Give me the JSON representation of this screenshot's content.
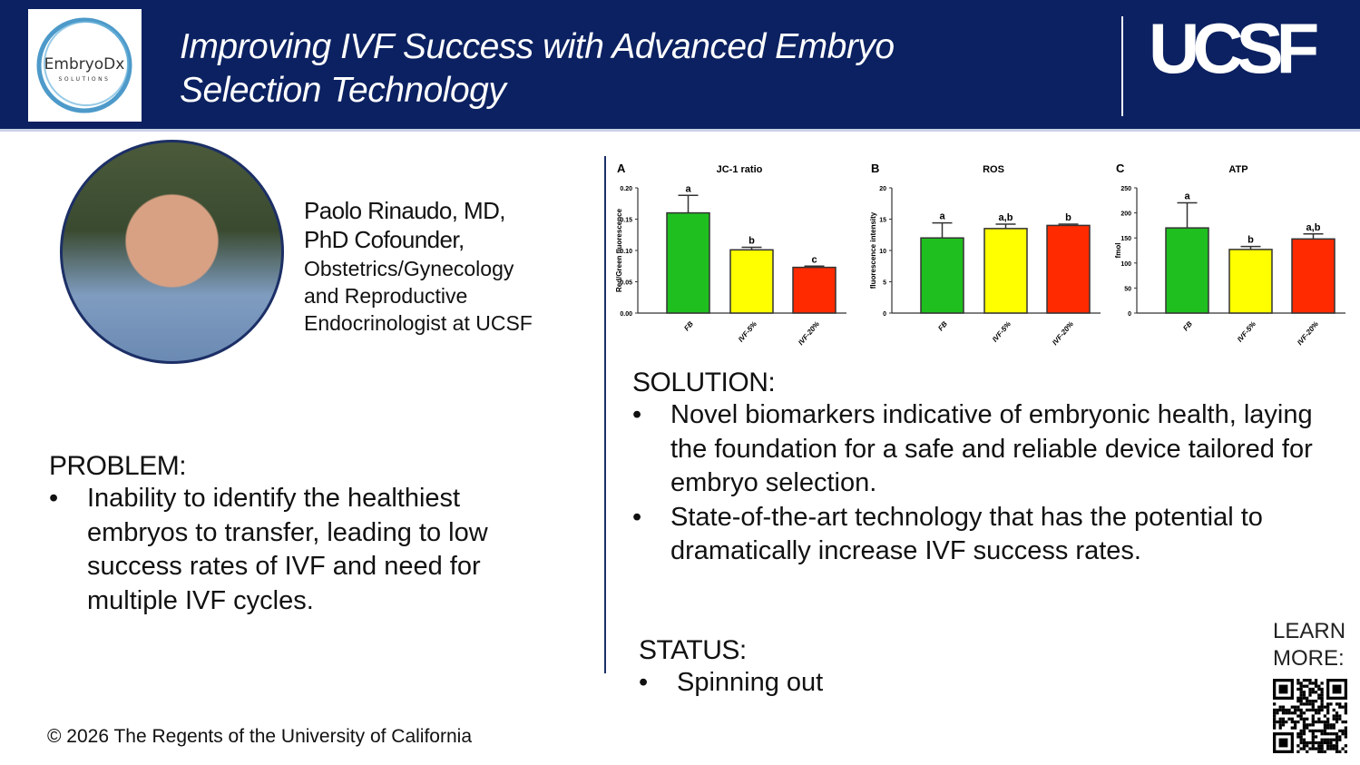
{
  "header": {
    "logo_text": "EmbryoDx",
    "logo_subtext": "SOLUTIONS",
    "title_line1": "Improving IVF Success with Advanced Embryo",
    "title_line2": "Selection Technology",
    "institution_logo": "UCSF"
  },
  "profile": {
    "name_line1": "Paolo Rinaudo, MD,",
    "name_line2": "PhD Cofounder,",
    "role_lines": [
      "Obstetrics/Gynecology",
      "and Reproductive",
      "Endocrinologist at UCSF"
    ]
  },
  "problem": {
    "heading": "PROBLEM:",
    "bullets": [
      "Inability to identify the healthiest embryos to transfer, leading to low success rates of IVF and need for multiple IVF cycles."
    ]
  },
  "solution": {
    "heading": "SOLUTION:",
    "bullets": [
      "Novel biomarkers indicative of embryonic health, laying the foundation for a safe and reliable device tailored for embryo selection.",
      "State-of-the-art technology that has the potential to dramatically increase IVF success rates."
    ]
  },
  "status": {
    "heading": "STATUS:",
    "bullets": [
      "Spinning out"
    ]
  },
  "learn_more": {
    "line1": "LEARN",
    "line2": "MORE:"
  },
  "footer": {
    "copyright": "© 2026 The Regents of the University of California"
  },
  "chart_data": [
    {
      "type": "bar",
      "panel": "A",
      "title": "JC-1 ratio",
      "ylabel": "Red/Green fluorescence",
      "categories": [
        "FB",
        "IVF-5%",
        "IVF-20%"
      ],
      "values": [
        0.16,
        0.101,
        0.073
      ],
      "error_upper": [
        0.188,
        0.105,
        0.075
      ],
      "letters": [
        "a",
        "b",
        "c"
      ],
      "ylim": [
        0,
        0.2
      ],
      "yticks": [
        "0.00",
        "0.05",
        "0.10",
        "0.15",
        "0.20"
      ],
      "tickvals": [
        0,
        0.05,
        0.1,
        0.15,
        0.2
      ],
      "colors": [
        "#1fbf1f",
        "#ffff00",
        "#ff2a00"
      ]
    },
    {
      "type": "bar",
      "panel": "B",
      "title": "ROS",
      "ylabel": "fluorescence intensity",
      "categories": [
        "FB",
        "IVF-5%",
        "IVF-20%"
      ],
      "values": [
        12,
        13.5,
        14
      ],
      "error_upper": [
        14.4,
        14.2,
        14.2
      ],
      "letters": [
        "a",
        "a,b",
        "b"
      ],
      "ylim": [
        0,
        20
      ],
      "yticks": [
        "0",
        "5",
        "10",
        "15",
        "20"
      ],
      "tickvals": [
        0,
        5,
        10,
        15,
        20
      ],
      "colors": [
        "#1fbf1f",
        "#ffff00",
        "#ff2a00"
      ]
    },
    {
      "type": "bar",
      "panel": "C",
      "title": "ATP",
      "ylabel": "fmol",
      "categories": [
        "FB",
        "IVF-5%",
        "IVF-20%"
      ],
      "values": [
        170,
        127,
        148
      ],
      "error_upper": [
        220,
        133,
        158
      ],
      "letters": [
        "a",
        "b",
        "a,b"
      ],
      "ylim": [
        0,
        250
      ],
      "yticks": [
        "0",
        "50",
        "100",
        "150",
        "200",
        "250"
      ],
      "tickvals": [
        0,
        50,
        100,
        150,
        200,
        250
      ],
      "colors": [
        "#1fbf1f",
        "#ffff00",
        "#ff2a00"
      ]
    }
  ]
}
